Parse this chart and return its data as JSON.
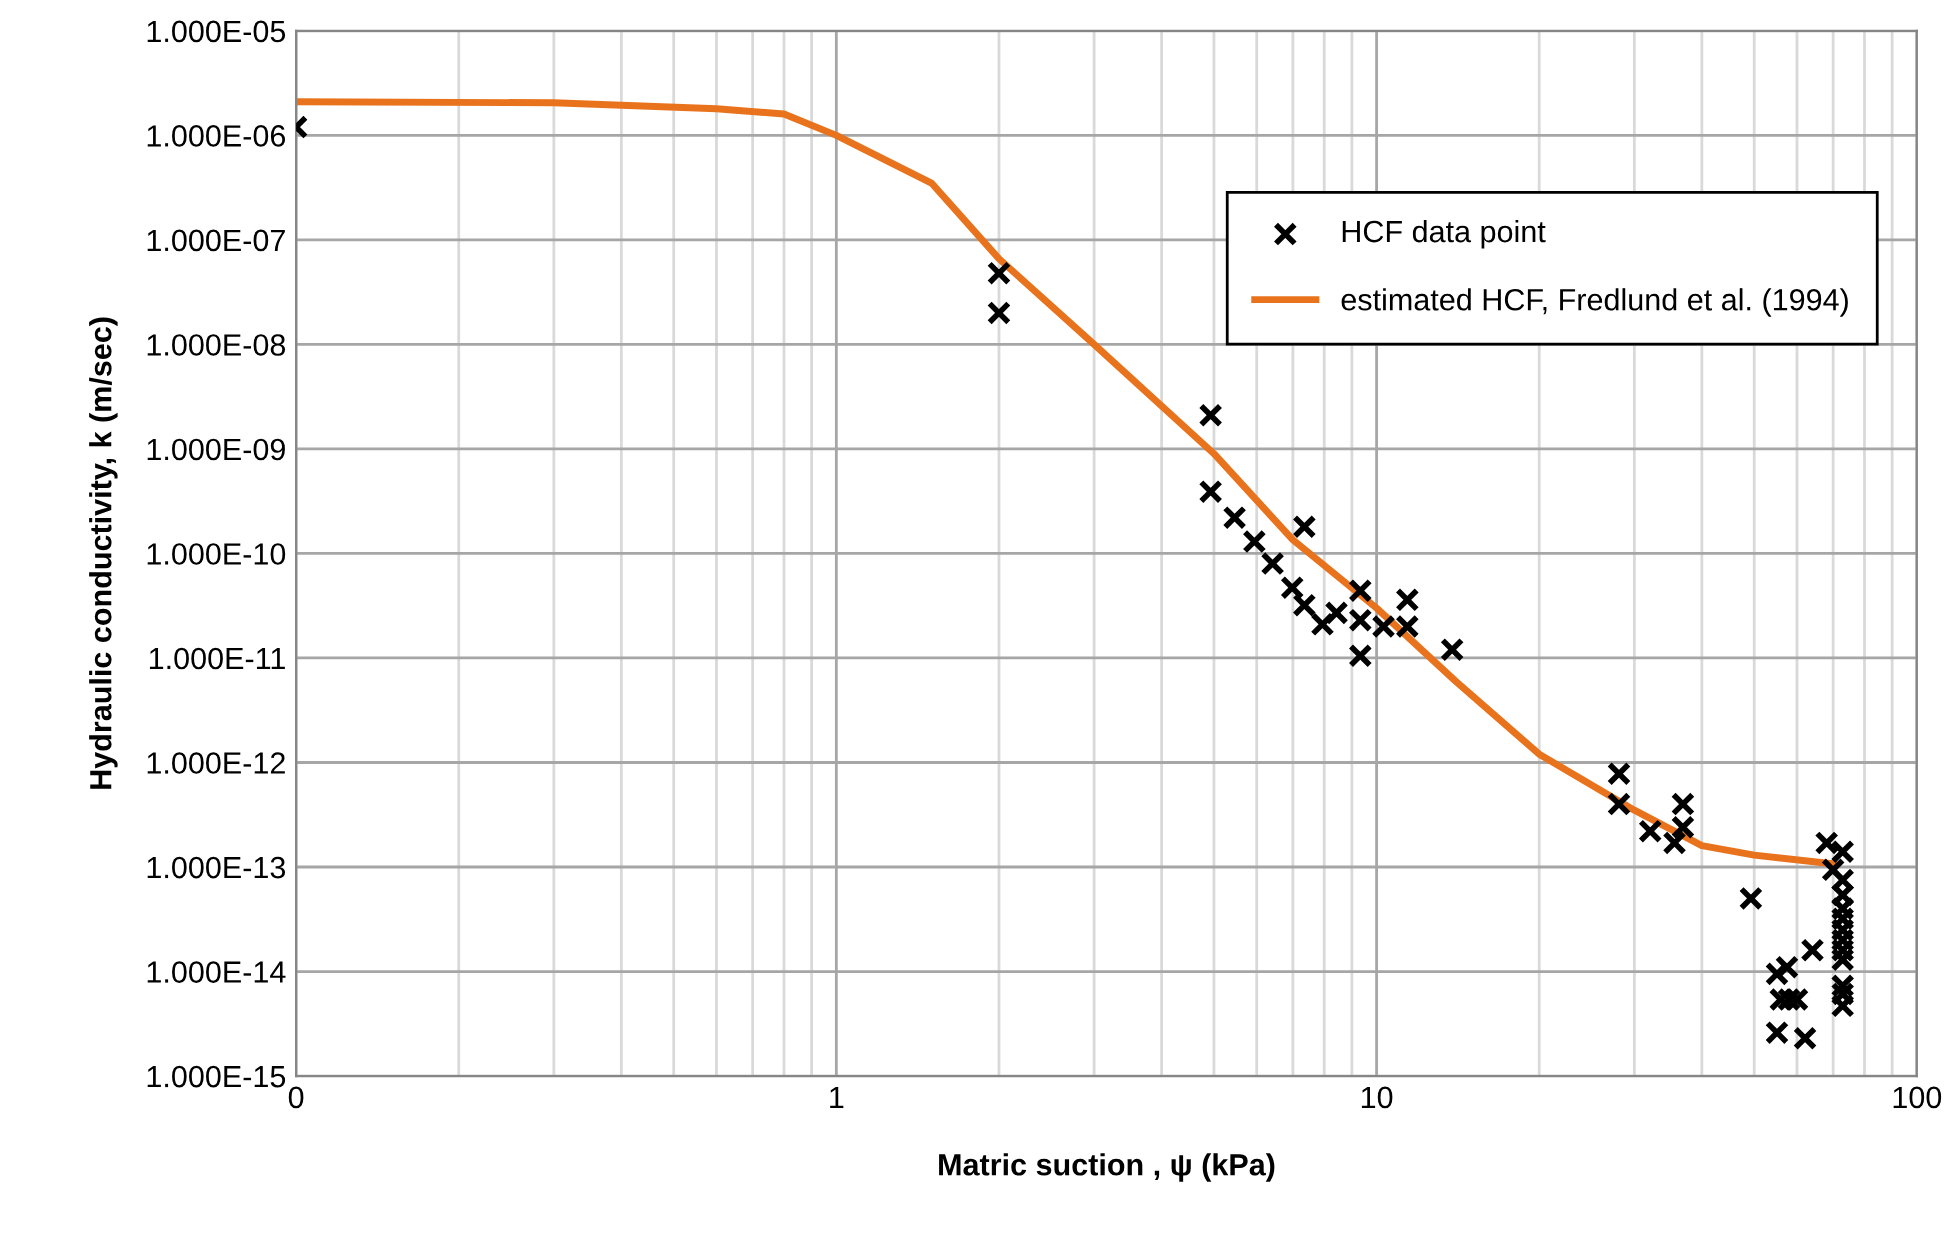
{
  "chart_data": {
    "type": "scatter",
    "xlabel": "Matric suction , ψ (kPa)",
    "ylabel": "Hydraulic conductivity, k (m/sec)",
    "log": "xy",
    "xlim": [
      0.1,
      100
    ],
    "xticks": [
      {
        "value": 0.1,
        "label": "0"
      },
      1,
      10,
      100
    ],
    "ylim": [
      1e-15,
      1e-05
    ],
    "yticks": [
      {
        "value": 1e-15,
        "label": "1.000E-15"
      },
      {
        "value": 1e-14,
        "label": "1.000E-14"
      },
      {
        "value": 1e-13,
        "label": "1.000E-13"
      },
      {
        "value": 1e-12,
        "label": "1.000E-12"
      },
      {
        "value": 1e-11,
        "label": "1.000E-11"
      },
      {
        "value": 1e-10,
        "label": "1.000E-10"
      },
      {
        "value": 1e-09,
        "label": "1.000E-09"
      },
      {
        "value": 1e-08,
        "label": "1.000E-08"
      },
      {
        "value": 1e-07,
        "label": "1.000E-07"
      },
      {
        "value": 1e-06,
        "label": "1.000E-06"
      },
      {
        "value": 1e-05,
        "label": "1.000E-05"
      }
    ],
    "grid": true,
    "legend": "top right",
    "series": [
      {
        "name": "HCF data point",
        "marker": "cross",
        "color": "#000000",
        "x": [
          0.1,
          2.0,
          2.0,
          4.93,
          4.93,
          5.46,
          5.94,
          6.42,
          6.98,
          7.35,
          7.35,
          7.94,
          8.43,
          9.33,
          9.33,
          9.33,
          10.3,
          11.4,
          11.4,
          13.8,
          28.1,
          28.1,
          32.1,
          35.6,
          36.9,
          36.9,
          49.3,
          55.1,
          57.5,
          56,
          58,
          60,
          55.1,
          62.1,
          64.1,
          68.1,
          70,
          72.9,
          72.9,
          72.9,
          72.9,
          72.9,
          72.9,
          72.9,
          72.9,
          72.9,
          72.9,
          72.9,
          72.9
        ],
        "values": [
          1.2e-06,
          4.8e-08,
          2e-08,
          2.1e-09,
          3.9e-10,
          2.2e-10,
          1.3e-10,
          8e-11,
          4.7e-11,
          3.2e-11,
          1.8e-10,
          2.1e-11,
          2.7e-11,
          4.4e-11,
          2.3e-11,
          1.05e-11,
          2e-11,
          2e-11,
          3.6e-11,
          1.2e-11,
          7.8e-13,
          4e-13,
          2.2e-13,
          1.7e-13,
          4e-13,
          2.4e-13,
          5e-14,
          9.5e-15,
          1.1e-14,
          5.4e-15,
          5.4e-15,
          5.4e-15,
          2.6e-15,
          2.3e-15,
          1.6e-14,
          1.7e-13,
          9.4e-14,
          1.4e-13,
          7.5e-14,
          5.4e-14,
          4e-14,
          3.2e-14,
          2.5e-14,
          2e-14,
          1.6e-14,
          1.3e-14,
          7.3e-15,
          6.1e-15,
          4.7e-15
        ]
      },
      {
        "name": "estimated HCF, Fredlund et al. (1994)",
        "type": "line",
        "marker": "none",
        "line_style": "solid",
        "color": "#e8731c",
        "x": [
          0.1,
          0.3,
          0.6,
          0.8,
          1,
          1.5,
          2,
          3,
          5,
          7,
          10,
          14,
          20,
          30,
          40,
          50,
          70
        ],
        "values": [
          2.1e-06,
          2.05e-06,
          1.8e-06,
          1.6e-06,
          1e-06,
          3.5e-07,
          6.6e-08,
          1e-08,
          9e-10,
          1.35e-10,
          3e-11,
          6e-12,
          1.2e-12,
          3.5e-13,
          1.6e-13,
          1.3e-13,
          1.07e-13
        ]
      }
    ]
  }
}
